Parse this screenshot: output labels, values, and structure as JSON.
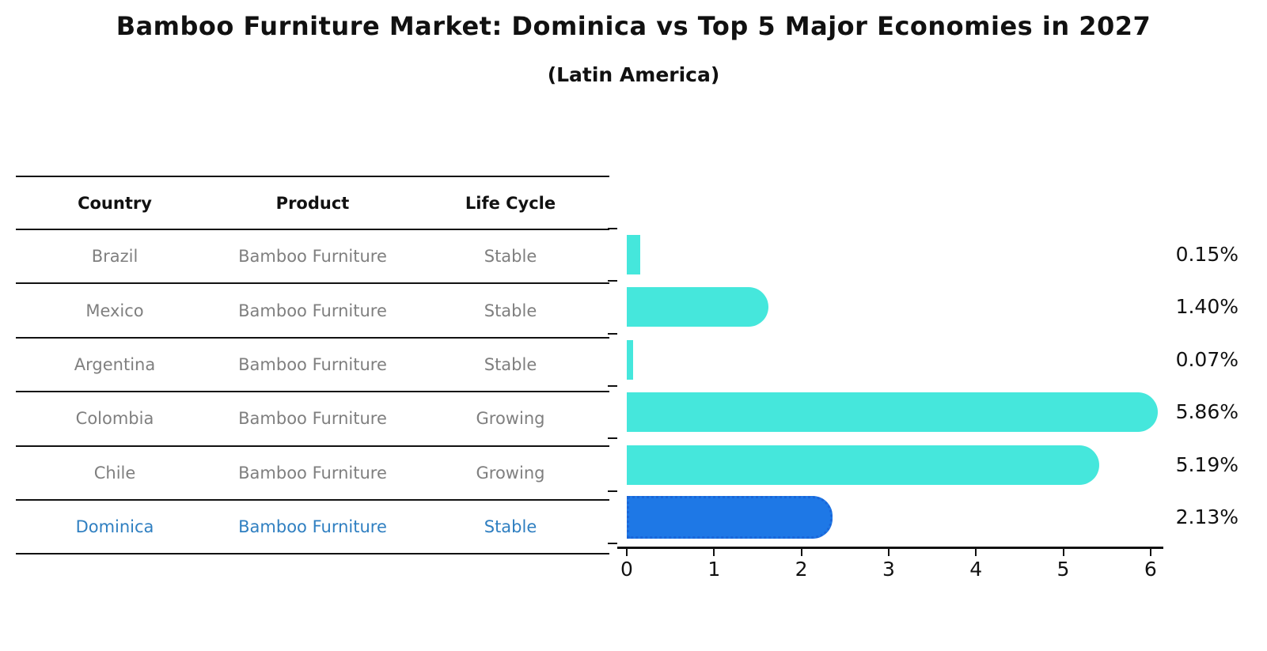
{
  "header": {
    "title": "Bamboo Furniture Market: Dominica vs Top 5 Major Economies in 2027",
    "subtitle": "(Latin America)"
  },
  "table": {
    "headers": [
      "Country",
      "Product",
      "Life Cycle"
    ],
    "rows": [
      {
        "country": "Brazil",
        "product": "Bamboo Furniture",
        "life_cycle": "Stable"
      },
      {
        "country": "Mexico",
        "product": "Bamboo Furniture",
        "life_cycle": "Stable"
      },
      {
        "country": "Argentina",
        "product": "Bamboo Furniture",
        "life_cycle": "Stable"
      },
      {
        "country": "Colombia",
        "product": "Bamboo Furniture",
        "life_cycle": "Growing"
      },
      {
        "country": "Chile",
        "product": "Bamboo Furniture",
        "life_cycle": "Growing"
      },
      {
        "country": "Dominica",
        "product": "Bamboo Furniture",
        "life_cycle": "Stable"
      }
    ],
    "highlighted_row": "Dominica"
  },
  "chart_data": {
    "type": "bar",
    "orientation": "horizontal",
    "title": "Bamboo Furniture Market: Dominica vs Top 5 Major Economies in 2027",
    "subtitle": "(Latin America)",
    "categories": [
      "Brazil",
      "Mexico",
      "Argentina",
      "Colombia",
      "Chile",
      "Dominica"
    ],
    "values": [
      0.15,
      1.4,
      0.07,
      5.86,
      5.19,
      2.13
    ],
    "value_labels": [
      "0.15%",
      "1.40%",
      "0.07%",
      "5.86%",
      "5.19%",
      "2.13%"
    ],
    "x_ticks": [
      "0",
      "1",
      "2",
      "3",
      "4",
      "5",
      "6"
    ],
    "xlim": [
      0,
      6.15
    ],
    "unit": "percent",
    "grid": false,
    "legend": "none",
    "highlight_index": 5
  },
  "colors": {
    "bar_default": "#45e7dc",
    "bar_highlight": "#1e78e6",
    "bar_highlight_border": "#1a66d9",
    "highlight_text": "#2f7fc1",
    "table_text": "#7f7f7f",
    "heading_text": "#111111",
    "axis": "#111111"
  }
}
